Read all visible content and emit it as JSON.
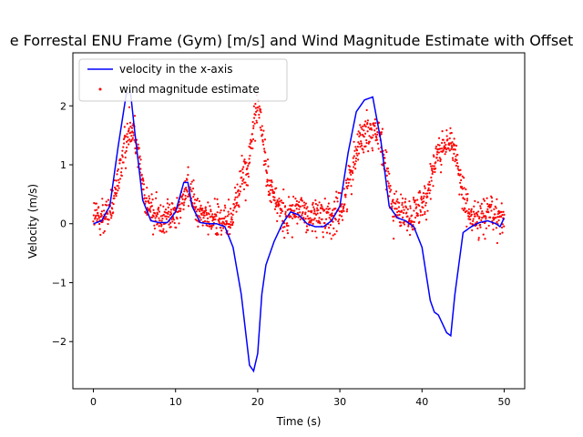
{
  "chart_data": {
    "type": "line",
    "title": "e Forrestal ENU Frame (Gym) [m/s] and Wind Magnitude Estimate with Offset",
    "xlabel": "Time (s)",
    "ylabel": "Velocity (m/s)",
    "xlim": [
      -2.5,
      52.5
    ],
    "ylim": [
      -2.8,
      2.9
    ],
    "x_ticks": [
      0,
      10,
      20,
      30,
      40,
      50
    ],
    "y_ticks": [
      -2,
      -1,
      0,
      1,
      2
    ],
    "grid": false,
    "legend_position": "top-left",
    "colors": {
      "line": "#0000ff",
      "scatter": "#ff0000"
    },
    "series": [
      {
        "name": "velocity in the x-axis",
        "type": "line",
        "x": [
          0,
          1,
          2,
          3,
          4,
          4.5,
          5,
          6,
          7,
          8,
          9,
          10,
          11,
          11.5,
          12,
          13,
          14,
          15,
          16,
          17,
          18,
          19,
          19.5,
          20,
          20.5,
          21,
          22,
          23,
          24,
          25,
          26,
          27,
          28,
          29,
          30,
          31,
          32,
          33,
          34,
          35,
          36,
          37,
          38,
          39,
          40,
          41,
          41.5,
          42,
          43,
          43.5,
          44,
          45,
          46,
          47,
          48,
          49,
          49.5,
          50
        ],
        "y": [
          0,
          0.05,
          0.3,
          1.3,
          2.2,
          2.25,
          1.6,
          0.4,
          0.05,
          0.02,
          0.02,
          0.2,
          0.7,
          0.7,
          0.3,
          0.02,
          0,
          0,
          -0.05,
          -0.4,
          -1.2,
          -2.4,
          -2.5,
          -2.2,
          -1.2,
          -0.7,
          -0.3,
          0,
          0.2,
          0.15,
          0,
          -0.05,
          -0.05,
          0.05,
          0.3,
          1.2,
          1.9,
          2.1,
          2.15,
          1.4,
          0.3,
          0.1,
          0.05,
          -0.05,
          -0.4,
          -1.3,
          -1.5,
          -1.55,
          -1.85,
          -1.9,
          -1.2,
          -0.15,
          -0.05,
          0.02,
          0.05,
          0,
          -0.05,
          0.1
        ]
      },
      {
        "name": "wind magnitude estimate",
        "type": "scatter",
        "marker": "dot",
        "x_range": [
          0,
          50
        ],
        "point_count": 1500
      }
    ]
  }
}
